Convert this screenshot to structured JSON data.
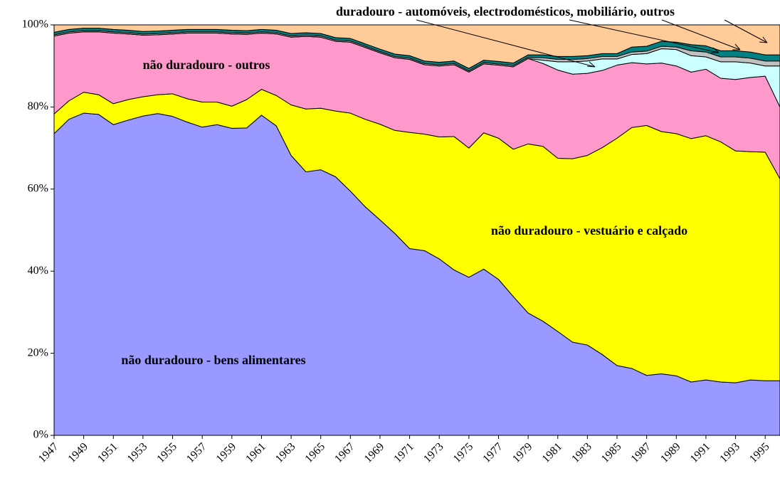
{
  "chart_data": {
    "type": "stacked-area",
    "x": [
      1947,
      1948,
      1949,
      1950,
      1951,
      1952,
      1953,
      1954,
      1955,
      1956,
      1957,
      1958,
      1959,
      1960,
      1961,
      1962,
      1963,
      1964,
      1965,
      1966,
      1967,
      1968,
      1969,
      1970,
      1971,
      1972,
      1973,
      1974,
      1975,
      1976,
      1977,
      1978,
      1979,
      1980,
      1981,
      1982,
      1983,
      1984,
      1985,
      1986,
      1987,
      1988,
      1989,
      1990,
      1991,
      1992,
      1993,
      1994,
      1995,
      1996
    ],
    "xlim": [
      1947,
      1996
    ],
    "xticks": [
      1947,
      1949,
      1951,
      1953,
      1955,
      1957,
      1959,
      1961,
      1963,
      1965,
      1967,
      1969,
      1971,
      1973,
      1975,
      1977,
      1979,
      1981,
      1983,
      1985,
      1987,
      1989,
      1991,
      1993,
      1995
    ],
    "ylim": [
      0,
      100
    ],
    "yticks": [
      {
        "value": 0,
        "label": "0%"
      },
      {
        "value": 20,
        "label": "20%"
      },
      {
        "value": 40,
        "label": "40%"
      },
      {
        "value": 60,
        "label": "60%"
      },
      {
        "value": 80,
        "label": "80%"
      },
      {
        "value": 100,
        "label": "100%"
      }
    ],
    "annotation": "duradouro - automóveis, electrodomésticos, mobiliário, outros",
    "series": [
      {
        "name": "não duradouro - bens alimentares",
        "color": "#9999ff",
        "values": [
          73.5,
          77,
          78.5,
          78.2,
          75.7,
          76.8,
          77.8,
          78.4,
          77.7,
          76.3,
          75.1,
          75.7,
          74.8,
          74.9,
          78,
          75.4,
          68.2,
          64.2,
          64.7,
          63,
          59.5,
          55.7,
          52.5,
          49.2,
          45.5,
          45,
          43,
          40.3,
          38.5,
          40.5,
          38,
          33.8,
          29.8,
          27.8,
          25.3,
          22.7,
          22,
          19.7,
          17,
          16.3,
          14.6,
          15,
          14.5,
          13,
          13.5,
          13,
          12.8,
          13.5,
          13.3,
          13.3
        ]
      },
      {
        "name": "não duradouro - vestuário e calçado",
        "color": "#ffff00",
        "values": [
          4.8,
          4.5,
          5.1,
          4.8,
          5.1,
          5.0,
          4.7,
          4.6,
          5.5,
          5.7,
          6.1,
          5.5,
          5.4,
          6.9,
          6.3,
          7.4,
          12.3,
          15.3,
          15.0,
          16.0,
          19.0,
          21.3,
          23.3,
          25.1,
          28.3,
          28.4,
          29.7,
          32.5,
          31.5,
          33.2,
          34.4,
          35.9,
          41.2,
          42.6,
          42.2,
          44.7,
          46.2,
          50.4,
          55.4,
          58.7,
          60.9,
          59.0,
          59.0,
          59.3,
          59.5,
          58.5,
          56.5,
          55.6,
          55.7,
          49.2
        ]
      },
      {
        "name": "não duradouro - outros",
        "color": "#ff99cc",
        "values": [
          19.0,
          16.5,
          14.7,
          15.3,
          17.2,
          16.0,
          15.0,
          14.6,
          14.6,
          16.0,
          16.8,
          16.8,
          17.6,
          15.9,
          13.7,
          15.0,
          16.5,
          17.7,
          17.3,
          17.0,
          17.3,
          17.5,
          17.4,
          17.7,
          17.8,
          16.9,
          17.3,
          17.5,
          18.5,
          16.8,
          17.8,
          20.1,
          20.8,
          20.2,
          21.5,
          20.6,
          20.0,
          18.8,
          17.8,
          15.8,
          15.0,
          16.7,
          16.5,
          16.2,
          16.2,
          15.5,
          17.4,
          18.1,
          18.5,
          17.5
        ]
      },
      {
        "color": "#ccffff",
        "values": [
          0,
          0,
          0,
          0,
          0,
          0,
          0,
          0,
          0,
          0,
          0,
          0,
          0,
          0,
          0,
          0,
          0,
          0,
          0,
          0,
          0,
          0,
          0,
          0,
          0,
          0,
          0,
          0,
          0,
          0,
          0,
          0,
          0,
          0.8,
          2,
          3,
          3,
          2.8,
          1.5,
          2,
          2.5,
          3.5,
          4,
          4,
          3,
          4,
          4.3,
          3.5,
          2.5,
          10
        ]
      },
      {
        "color": "#c0c0c0",
        "values": [
          0.3,
          0.3,
          0.3,
          0.3,
          0.3,
          0.3,
          0.3,
          0.3,
          0.3,
          0.3,
          0.3,
          0.3,
          0.3,
          0.3,
          0.3,
          0.3,
          0.3,
          0.3,
          0.3,
          0.3,
          0.3,
          0.3,
          0.3,
          0.3,
          0.3,
          0.3,
          0.3,
          0.3,
          0.3,
          0.3,
          0.3,
          0.3,
          0.3,
          0.6,
          0.6,
          0.6,
          0.6,
          0.6,
          0.6,
          0.6,
          0.6,
          0.6,
          0.6,
          1.2,
          1.2,
          1.2,
          1.2,
          1.2,
          1.2,
          1.2
        ]
      },
      {
        "color": "#008080",
        "values": [
          0.6,
          0.6,
          0.6,
          0.6,
          0.6,
          0.6,
          0.6,
          0.6,
          0.6,
          0.6,
          0.6,
          0.6,
          0.6,
          0.6,
          0.6,
          0.6,
          0.6,
          0.6,
          0.6,
          0.6,
          0.6,
          0.6,
          0.6,
          0.6,
          0.6,
          0.6,
          0.6,
          0.6,
          0.6,
          0.6,
          0.6,
          0.6,
          0.6,
          0.7,
          0.7,
          0.7,
          0.7,
          0.7,
          0.7,
          1.2,
          1.2,
          1.2,
          1.2,
          1.5,
          1.5,
          1.5,
          1.5,
          1.5,
          1.5,
          1.5
        ]
      },
      {
        "color": "#ffcc99",
        "values": [
          1.8,
          1.1,
          0.8,
          0.8,
          1.1,
          1.3,
          1.6,
          1.5,
          1.3,
          1.1,
          1.1,
          1.1,
          1.3,
          1.4,
          1.1,
          1.3,
          2.1,
          1.9,
          2.1,
          3.1,
          3.3,
          4.6,
          5.9,
          7.1,
          7.5,
          8.8,
          9.1,
          8.8,
          10.6,
          8.6,
          8.9,
          9.3,
          7.3,
          7.3,
          7.7,
          7.7,
          7.5,
          7.0,
          7.0,
          5.4,
          5.2,
          4.0,
          4.2,
          4.8,
          5.1,
          6.3,
          6.3,
          6.6,
          7.3,
          7.3
        ]
      }
    ]
  }
}
